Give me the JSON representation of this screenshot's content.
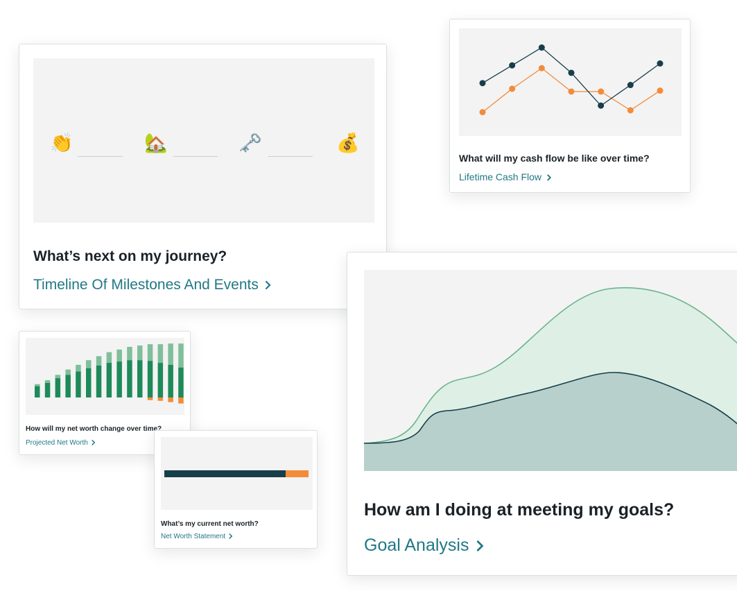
{
  "timeline_card": {
    "question": "What’s next on my journey?",
    "link_label": "Timeline Of Milestones And Events",
    "milestones": [
      {
        "icon": "clapping-hands-icon",
        "glyph": "👏"
      },
      {
        "icon": "house-with-garden-icon",
        "glyph": "🏡"
      },
      {
        "icon": "key-icon",
        "glyph": "🗝️"
      },
      {
        "icon": "money-bag-icon",
        "glyph": "💰"
      }
    ]
  },
  "cashflow_card": {
    "question": "What will my cash flow be like over time?",
    "link_label": "Lifetime Cash Flow",
    "chart_data": {
      "type": "line",
      "x": [
        1,
        2,
        3,
        4,
        5,
        6,
        7
      ],
      "series": [
        {
          "color": "#173e4b",
          "values": [
            0.49,
            0.68,
            0.87,
            0.6,
            0.25,
            0.47,
            0.7
          ]
        },
        {
          "color": "#f28c3b",
          "values": [
            0.18,
            0.43,
            0.65,
            0.4,
            0.4,
            0.2,
            0.41
          ]
        }
      ],
      "ylim": [
        0,
        1
      ]
    }
  },
  "goals_card": {
    "question": "How am I doing at meeting my goals?",
    "link_label": "Goal Analysis",
    "chart_data": {
      "type": "area",
      "series": [
        {
          "color": "#6ab48a",
          "fill": "#deefe6",
          "peak": 0.91
        },
        {
          "color": "#163e49",
          "fill": "#b7d0cc",
          "peak": 0.49
        }
      ]
    }
  },
  "projected_card": {
    "question": "How will my net worth change over time?",
    "link_label": "Projected Net Worth",
    "chart_data": {
      "type": "bar",
      "categories": [
        "1",
        "2",
        "3",
        "4",
        "5",
        "6",
        "7",
        "8",
        "9",
        "10",
        "11",
        "12",
        "13",
        "14",
        "15"
      ],
      "series": [
        {
          "color": "#1e8a5a",
          "values": [
            17,
            22,
            29,
            34,
            39,
            44,
            48,
            52,
            54,
            56,
            56,
            55,
            52,
            49,
            45
          ]
        },
        {
          "color": "#7fbf9a",
          "values": [
            3,
            4,
            5,
            8,
            10,
            12,
            14,
            16,
            18,
            20,
            22,
            25,
            28,
            32,
            36
          ]
        },
        {
          "color": "#f28c3b",
          "values": [
            0,
            0,
            0,
            0,
            0,
            0,
            0,
            0,
            0,
            0,
            0,
            4,
            5,
            7,
            9
          ]
        }
      ],
      "ylim": [
        -10,
        100
      ]
    }
  },
  "statement_card": {
    "question": "What’s my current net worth?",
    "link_label": "Net Worth Statement",
    "chart_data": {
      "type": "bar",
      "series": [
        {
          "color": "#163e49",
          "value": 0.84
        },
        {
          "color": "#f28c3b",
          "value": 0.16
        }
      ]
    }
  }
}
